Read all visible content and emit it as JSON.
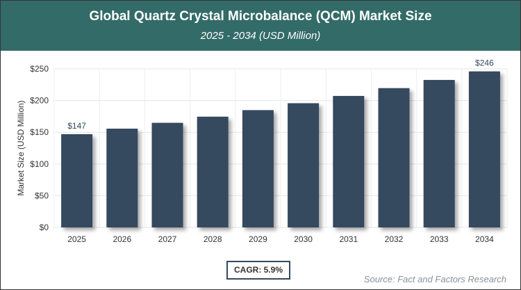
{
  "header": {
    "title": "Global Quartz Crystal Microbalance (QCM) Market Size",
    "subtitle": "2025 - 2034 (USD Million)"
  },
  "chart_data": {
    "type": "bar",
    "categories": [
      "2025",
      "2026",
      "2027",
      "2028",
      "2029",
      "2030",
      "2031",
      "2032",
      "2033",
      "2034"
    ],
    "values": [
      147,
      155.7,
      164.9,
      174.6,
      184.9,
      195.8,
      207.3,
      219.6,
      232.5,
      246
    ],
    "data_labels": {
      "0": "$147",
      "9": "$246"
    },
    "ylabel": "Market Size (USD Million)",
    "ylim": [
      0,
      250
    ],
    "yticks": [
      0,
      50,
      100,
      150,
      200,
      250
    ],
    "ytick_labels": [
      "$0",
      "$50",
      "$100",
      "$150",
      "$200",
      "$250"
    ],
    "grid": true,
    "bar_color": "#34495e"
  },
  "cagr": "CAGR: 5.9%",
  "source": "Source: Fact and Factors Research"
}
